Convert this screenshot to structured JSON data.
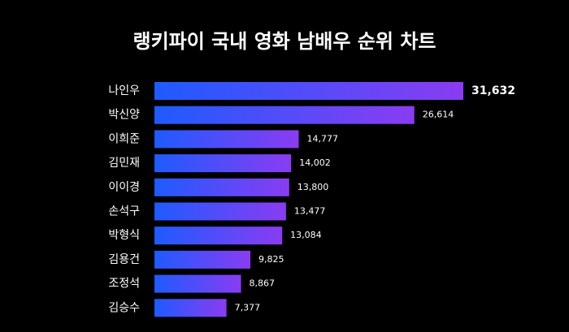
{
  "chart_data": {
    "type": "bar",
    "orientation": "horizontal",
    "title": "랭키파이 국내 영화 남배우 순위 차트",
    "categories": [
      "나인우",
      "박신양",
      "이희준",
      "김민재",
      "이이경",
      "손석구",
      "박형식",
      "김용건",
      "조정석",
      "김승수"
    ],
    "values": [
      31632,
      26614,
      14777,
      14002,
      13800,
      13477,
      13084,
      9825,
      8867,
      7377
    ],
    "value_labels": [
      "31,632",
      "26,614",
      "14,777",
      "14,002",
      "13,800",
      "13,477",
      "13,084",
      "9,825",
      "8,867",
      "7,377"
    ],
    "colors": [
      "#1e5bff",
      "#8a3cf2"
    ]
  }
}
